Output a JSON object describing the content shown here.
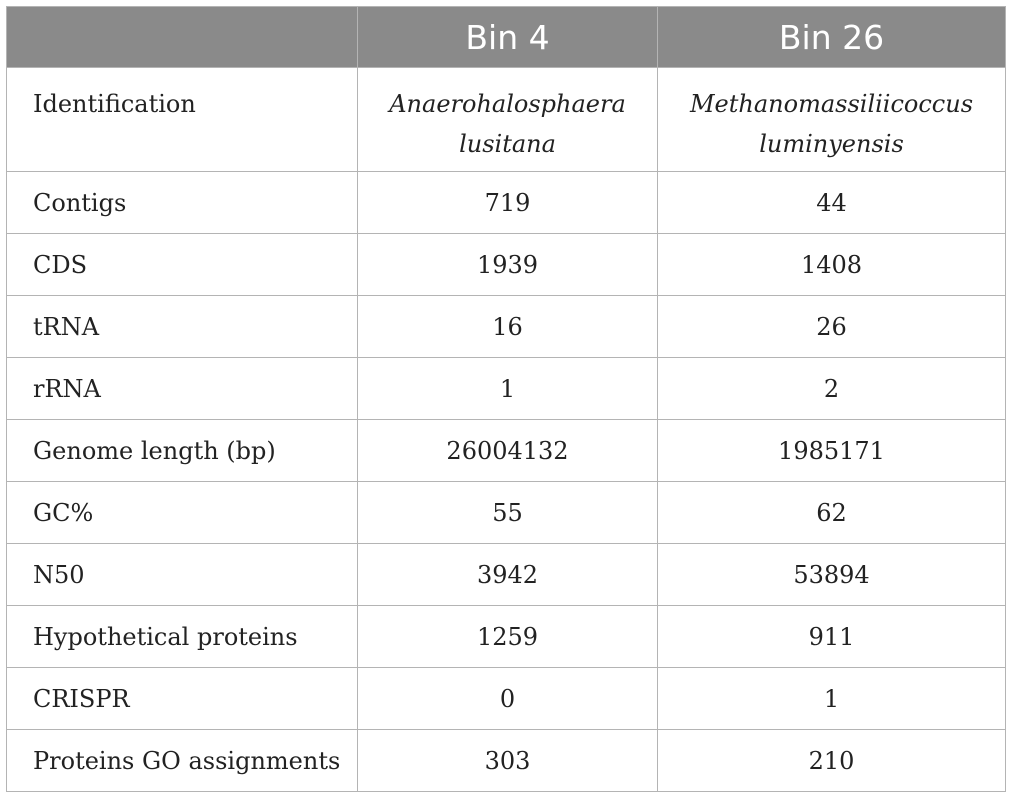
{
  "table": {
    "headers": [
      "",
      "Bin 4",
      "Bin 26"
    ],
    "identification": {
      "label": "Identification",
      "bin4_line1": "Anaerohalosphaera",
      "bin4_line2": "lusitana",
      "bin26_line1": "Methanomassiliicoccus",
      "bin26_line2": "luminyensis"
    },
    "rows": [
      {
        "label": "Contigs",
        "bin4": "719",
        "bin26": "44"
      },
      {
        "label": "CDS",
        "bin4": "1939",
        "bin26": "1408"
      },
      {
        "label": "tRNA",
        "bin4": "16",
        "bin26": "26"
      },
      {
        "label": "rRNA",
        "bin4": "1",
        "bin26": "2"
      },
      {
        "label": "Genome length (bp)",
        "bin4": "26004132",
        "bin26": "1985171"
      },
      {
        "label": "GC%",
        "bin4": "55",
        "bin26": "62"
      },
      {
        "label": "N50",
        "bin4": "3942",
        "bin26": "53894"
      },
      {
        "label": "Hypothetical proteins",
        "bin4": "1259",
        "bin26": "911"
      },
      {
        "label": "CRISPR",
        "bin4": "0",
        "bin26": "1"
      },
      {
        "label": "Proteins GO assignments",
        "bin4": "303",
        "bin26": "210"
      }
    ]
  }
}
